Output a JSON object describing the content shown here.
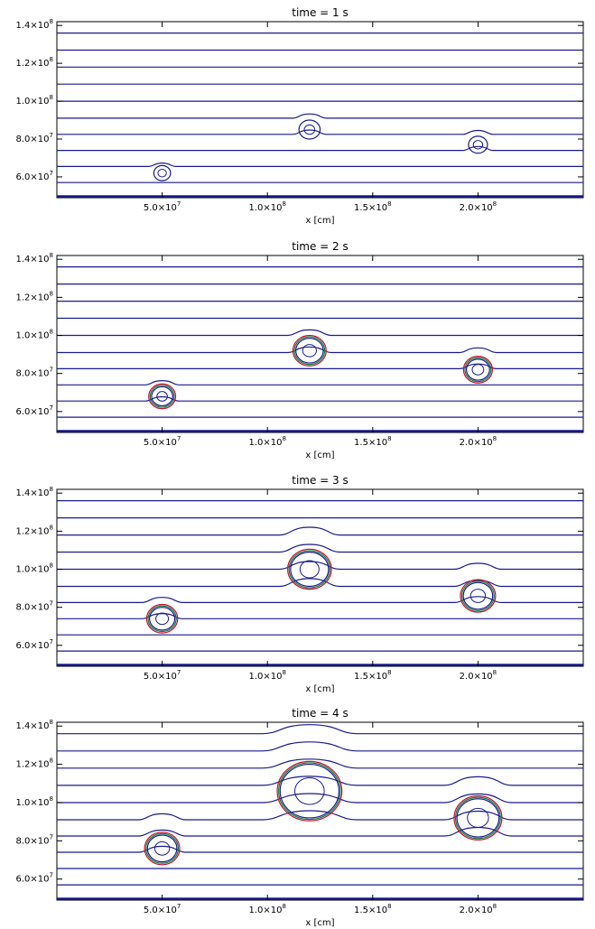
{
  "chart_data": [
    {
      "type": "line",
      "title": "time = 1 s",
      "xlabel": "x [cm]",
      "xlim": [
        0,
        250000000.0
      ],
      "ylim": [
        49000000.0,
        142000000.0
      ],
      "xticks": [
        {
          "value": 50000000.0,
          "mant": "5.0",
          "exp": "7"
        },
        {
          "value": 100000000.0,
          "mant": "1.0",
          "exp": "8"
        },
        {
          "value": 150000000.0,
          "mant": "1.5",
          "exp": "8"
        },
        {
          "value": 200000000.0,
          "mant": "2.0",
          "exp": "8"
        }
      ],
      "yticks": [
        {
          "value": 60000000.0,
          "mant": "6.0",
          "exp": "7"
        },
        {
          "value": 80000000.0,
          "mant": "8.0",
          "exp": "7"
        },
        {
          "value": 100000000.0,
          "mant": "1.0",
          "exp": "8"
        },
        {
          "value": 120000000.0,
          "mant": "1.2",
          "exp": "8"
        },
        {
          "value": 140000000.0,
          "mant": "1.4",
          "exp": "8"
        }
      ],
      "contour_levels_y": [
        57000000.0,
        65500000.0,
        74000000.0,
        82500000.0,
        91000000.0,
        100000000.0,
        109000000.0,
        118000000.0,
        127000000.0,
        136000000.0
      ],
      "bubbles": [
        {
          "x": 50000000.0,
          "y": 62000000.0,
          "radius": 4000000.0
        },
        {
          "x": 120000000.0,
          "y": 85000000.0,
          "radius": 5000000.0
        },
        {
          "x": 200000000.0,
          "y": 77000000.0,
          "radius": 4500000.0
        }
      ],
      "series_colors": [
        "#1a1a8c",
        "#0a7a3c",
        "#c8102e"
      ]
    },
    {
      "type": "line",
      "title": "time = 2 s",
      "xlabel": "x [cm]",
      "xlim": [
        0,
        250000000.0
      ],
      "ylim": [
        49000000.0,
        142000000.0
      ],
      "xticks": [
        {
          "value": 50000000.0,
          "mant": "5.0",
          "exp": "7"
        },
        {
          "value": 100000000.0,
          "mant": "1.0",
          "exp": "8"
        },
        {
          "value": 150000000.0,
          "mant": "1.5",
          "exp": "8"
        },
        {
          "value": 200000000.0,
          "mant": "2.0",
          "exp": "8"
        }
      ],
      "yticks": [
        {
          "value": 60000000.0,
          "mant": "6.0",
          "exp": "7"
        },
        {
          "value": 80000000.0,
          "mant": "8.0",
          "exp": "7"
        },
        {
          "value": 100000000.0,
          "mant": "1.0",
          "exp": "8"
        },
        {
          "value": 120000000.0,
          "mant": "1.2",
          "exp": "8"
        },
        {
          "value": 140000000.0,
          "mant": "1.4",
          "exp": "8"
        }
      ],
      "contour_levels_y": [
        57000000.0,
        65500000.0,
        74000000.0,
        82500000.0,
        91000000.0,
        100000000.0,
        109000000.0,
        118000000.0,
        127000000.0,
        136000000.0
      ],
      "bubbles": [
        {
          "x": 50000000.0,
          "y": 68000000.0,
          "radius": 5000000.0
        },
        {
          "x": 120000000.0,
          "y": 92000000.0,
          "radius": 6500000.0
        },
        {
          "x": 200000000.0,
          "y": 82000000.0,
          "radius": 5500000.0
        }
      ],
      "series_colors": [
        "#1a1a8c",
        "#0a7a3c",
        "#c8102e"
      ]
    },
    {
      "type": "line",
      "title": "time = 3 s",
      "xlabel": "x [cm]",
      "xlim": [
        0,
        250000000.0
      ],
      "ylim": [
        49000000.0,
        142000000.0
      ],
      "xticks": [
        {
          "value": 50000000.0,
          "mant": "5.0",
          "exp": "7"
        },
        {
          "value": 100000000.0,
          "mant": "1.0",
          "exp": "8"
        },
        {
          "value": 150000000.0,
          "mant": "1.5",
          "exp": "8"
        },
        {
          "value": 200000000.0,
          "mant": "2.0",
          "exp": "8"
        }
      ],
      "yticks": [
        {
          "value": 60000000.0,
          "mant": "6.0",
          "exp": "7"
        },
        {
          "value": 80000000.0,
          "mant": "8.0",
          "exp": "7"
        },
        {
          "value": 100000000.0,
          "mant": "1.0",
          "exp": "8"
        },
        {
          "value": 120000000.0,
          "mant": "1.2",
          "exp": "8"
        },
        {
          "value": 140000000.0,
          "mant": "1.4",
          "exp": "8"
        }
      ],
      "contour_levels_y": [
        57000000.0,
        65500000.0,
        74000000.0,
        82500000.0,
        91000000.0,
        100000000.0,
        109000000.0,
        118000000.0,
        127000000.0,
        136000000.0
      ],
      "bubbles": [
        {
          "x": 50000000.0,
          "y": 74000000.0,
          "radius": 6000000.0
        },
        {
          "x": 120000000.0,
          "y": 100000000.0,
          "radius": 9000000.0
        },
        {
          "x": 200000000.0,
          "y": 86000000.0,
          "radius": 7000000.0
        }
      ],
      "series_colors": [
        "#1a1a8c",
        "#0a7a3c",
        "#c8102e"
      ]
    },
    {
      "type": "line",
      "title": "time = 4 s",
      "xlabel": "x [cm]",
      "xlim": [
        0,
        250000000.0
      ],
      "ylim": [
        49000000.0,
        142000000.0
      ],
      "xticks": [
        {
          "value": 50000000.0,
          "mant": "5.0",
          "exp": "7"
        },
        {
          "value": 100000000.0,
          "mant": "1.0",
          "exp": "8"
        },
        {
          "value": 150000000.0,
          "mant": "1.5",
          "exp": "8"
        },
        {
          "value": 200000000.0,
          "mant": "2.0",
          "exp": "8"
        }
      ],
      "yticks": [
        {
          "value": 60000000.0,
          "mant": "6.0",
          "exp": "7"
        },
        {
          "value": 80000000.0,
          "mant": "8.0",
          "exp": "7"
        },
        {
          "value": 100000000.0,
          "mant": "1.0",
          "exp": "8"
        },
        {
          "value": 120000000.0,
          "mant": "1.2",
          "exp": "8"
        },
        {
          "value": 140000000.0,
          "mant": "1.4",
          "exp": "8"
        }
      ],
      "contour_levels_y": [
        57000000.0,
        65500000.0,
        74000000.0,
        82500000.0,
        91000000.0,
        100000000.0,
        109000000.0,
        118000000.0,
        127000000.0,
        136000000.0
      ],
      "bubbles": [
        {
          "x": 50000000.0,
          "y": 76000000.0,
          "radius": 7000000.0
        },
        {
          "x": 120000000.0,
          "y": 106000000.0,
          "radius": 14000000.0
        },
        {
          "x": 200000000.0,
          "y": 92000000.0,
          "radius": 10000000.0
        }
      ],
      "series_colors": [
        "#1a1a8c",
        "#0a7a3c",
        "#c8102e"
      ]
    }
  ]
}
